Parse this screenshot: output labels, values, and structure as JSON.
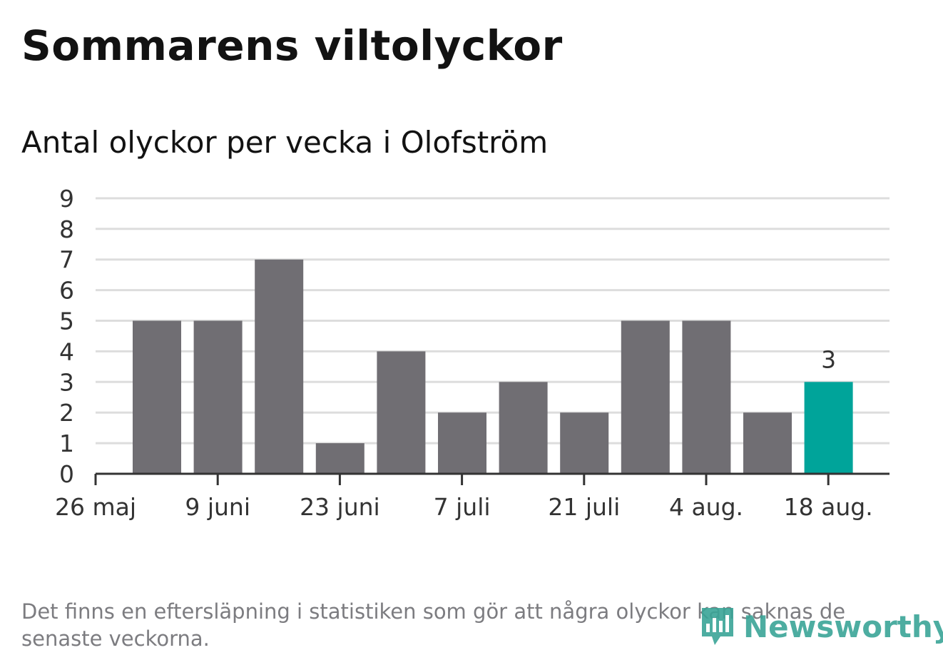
{
  "header": {
    "title": "Sommarens viltolyckor",
    "subtitle": "Antal olyckor per vecka i Olofström"
  },
  "footer": {
    "note": "Det finns en eftersläpning i statistiken som gör att några olyckor kan saknas de senaste veckorna.",
    "brand": "Newsworthy"
  },
  "colors": {
    "bar": "#706e73",
    "highlight": "#00a49a",
    "grid": "#dddddd",
    "axis": "#333333"
  },
  "chart_data": {
    "type": "bar",
    "y_ticks": [
      "0",
      "1",
      "2",
      "3",
      "4",
      "5",
      "6",
      "7",
      "8",
      "9"
    ],
    "ylim": [
      0,
      9
    ],
    "x_tick_labels": [
      "26 maj",
      "9 juni",
      "23 juni",
      "7 juli",
      "21 juli",
      "4 aug.",
      "18 aug."
    ],
    "values": [
      5,
      5,
      7,
      1,
      4,
      2,
      3,
      2,
      5,
      5,
      2,
      3
    ],
    "highlight_index": 11,
    "highlight_label": "3",
    "grid": true
  }
}
